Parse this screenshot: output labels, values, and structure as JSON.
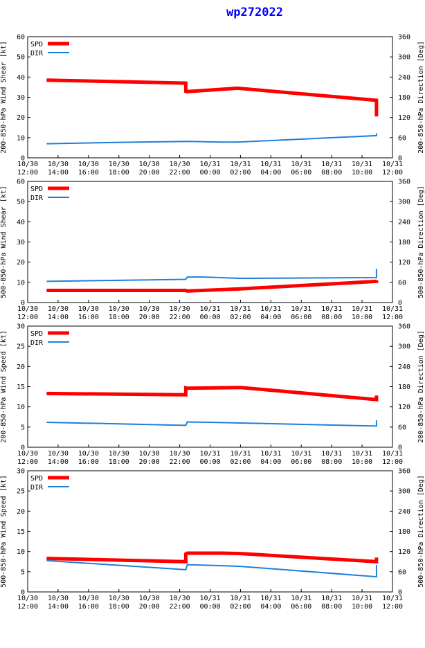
{
  "title": "wp272022",
  "colors": {
    "spd": "#ff0000",
    "dir": "#1e7fd9",
    "title": "#0000ff"
  },
  "chart_data": [
    {
      "type": "line",
      "ylabel_left": "200-850-hPa Wind Shear [kt]",
      "ylabel_right": "200-850-hPa Direction [Deg]",
      "ylim": [
        0,
        60
      ],
      "yticks": [
        0,
        10,
        20,
        30,
        40,
        50,
        60
      ],
      "y2lim": [
        0,
        360
      ],
      "y2ticks": [
        0,
        60,
        120,
        180,
        240,
        300,
        360
      ],
      "xlim": [
        0,
        24
      ],
      "xticks": [
        {
          "x": 0,
          "l1": "10/30",
          "l2": "12:00"
        },
        {
          "x": 2,
          "l1": "10/30",
          "l2": "14:00"
        },
        {
          "x": 4,
          "l1": "10/30",
          "l2": "16:00"
        },
        {
          "x": 6,
          "l1": "10/30",
          "l2": "18:00"
        },
        {
          "x": 8,
          "l1": "10/30",
          "l2": "20:00"
        },
        {
          "x": 10,
          "l1": "10/30",
          "l2": "22:00"
        },
        {
          "x": 12,
          "l1": "10/31",
          "l2": "00:00"
        },
        {
          "x": 14,
          "l1": "10/31",
          "l2": "02:00"
        },
        {
          "x": 16,
          "l1": "10/31",
          "l2": "04:00"
        },
        {
          "x": 18,
          "l1": "10/31",
          "l2": "06:00"
        },
        {
          "x": 20,
          "l1": "10/31",
          "l2": "08:00"
        },
        {
          "x": 22,
          "l1": "10/31",
          "l2": "10:00"
        },
        {
          "x": 24,
          "l1": "10/31",
          "l2": "12:00"
        }
      ],
      "legend": [
        "SPD",
        "DIR"
      ],
      "series": [
        {
          "name": "SPD",
          "axis": "left",
          "width": 5,
          "x": [
            1.25,
            10.4,
            10.4,
            10.5,
            13.8,
            22.95,
            22.95
          ],
          "y": [
            38.5,
            37.0,
            33.0,
            32.8,
            34.5,
            28.5,
            20.5
          ]
        },
        {
          "name": "DIR",
          "axis": "right",
          "width": 2,
          "x": [
            1.25,
            6,
            10.6,
            12.8,
            13.8,
            22.95,
            22.95
          ],
          "y": [
            42,
            46,
            49,
            47,
            47,
            66,
            73
          ]
        }
      ]
    },
    {
      "type": "line",
      "ylabel_left": "500-850-hPa Wind Shear [kt]",
      "ylabel_right": "500-850-hPa Direction [Deg]",
      "ylim": [
        0,
        60
      ],
      "yticks": [
        0,
        10,
        20,
        30,
        40,
        50,
        60
      ],
      "y2lim": [
        0,
        360
      ],
      "y2ticks": [
        0,
        60,
        120,
        180,
        240,
        300,
        360
      ],
      "xlim": [
        0,
        24
      ],
      "xticks": [
        {
          "x": 0,
          "l1": "10/30",
          "l2": "12:00"
        },
        {
          "x": 2,
          "l1": "10/30",
          "l2": "14:00"
        },
        {
          "x": 4,
          "l1": "10/30",
          "l2": "16:00"
        },
        {
          "x": 6,
          "l1": "10/30",
          "l2": "18:00"
        },
        {
          "x": 8,
          "l1": "10/30",
          "l2": "20:00"
        },
        {
          "x": 10,
          "l1": "10/30",
          "l2": "22:00"
        },
        {
          "x": 12,
          "l1": "10/31",
          "l2": "00:00"
        },
        {
          "x": 14,
          "l1": "10/31",
          "l2": "02:00"
        },
        {
          "x": 16,
          "l1": "10/31",
          "l2": "04:00"
        },
        {
          "x": 18,
          "l1": "10/31",
          "l2": "06:00"
        },
        {
          "x": 20,
          "l1": "10/31",
          "l2": "08:00"
        },
        {
          "x": 22,
          "l1": "10/31",
          "l2": "10:00"
        },
        {
          "x": 24,
          "l1": "10/31",
          "l2": "12:00"
        }
      ],
      "legend": [
        "SPD",
        "DIR"
      ],
      "series": [
        {
          "name": "SPD",
          "axis": "left",
          "width": 5,
          "x": [
            1.25,
            10.4,
            10.5,
            14,
            22.95,
            22.95
          ],
          "y": [
            6.0,
            6.0,
            5.7,
            6.8,
            10.5,
            11.0
          ]
        },
        {
          "name": "DIR",
          "axis": "right",
          "width": 2,
          "x": [
            1.25,
            10.4,
            10.5,
            11.5,
            14,
            22.95,
            22.95
          ],
          "y": [
            63,
            69,
            76,
            76,
            72,
            74,
            100
          ]
        }
      ]
    },
    {
      "type": "line",
      "ylabel_left": "200-850-hPa Wind Speed [kt]",
      "ylabel_right": "200-850-hPa Direction [Deg]",
      "ylim": [
        0,
        30
      ],
      "yticks": [
        0,
        5,
        10,
        15,
        20,
        25,
        30
      ],
      "y2lim": [
        0,
        360
      ],
      "y2ticks": [
        0,
        60,
        120,
        180,
        240,
        300,
        360
      ],
      "xlim": [
        0,
        24
      ],
      "xticks": [
        {
          "x": 0,
          "l1": "10/30",
          "l2": "12:00"
        },
        {
          "x": 2,
          "l1": "10/30",
          "l2": "14:00"
        },
        {
          "x": 4,
          "l1": "10/30",
          "l2": "16:00"
        },
        {
          "x": 6,
          "l1": "10/30",
          "l2": "18:00"
        },
        {
          "x": 8,
          "l1": "10/30",
          "l2": "20:00"
        },
        {
          "x": 10,
          "l1": "10/30",
          "l2": "22:00"
        },
        {
          "x": 12,
          "l1": "10/31",
          "l2": "00:00"
        },
        {
          "x": 14,
          "l1": "10/31",
          "l2": "02:00"
        },
        {
          "x": 16,
          "l1": "10/31",
          "l2": "04:00"
        },
        {
          "x": 18,
          "l1": "10/31",
          "l2": "06:00"
        },
        {
          "x": 20,
          "l1": "10/31",
          "l2": "08:00"
        },
        {
          "x": 22,
          "l1": "10/31",
          "l2": "10:00"
        },
        {
          "x": 24,
          "l1": "10/31",
          "l2": "12:00"
        }
      ],
      "legend": [
        "SPD",
        "DIR"
      ],
      "series": [
        {
          "name": "SPD",
          "axis": "left",
          "width": 5,
          "x": [
            1.25,
            10.4,
            10.4,
            10.5,
            14,
            22.95,
            22.95
          ],
          "y": [
            13.3,
            13.0,
            14.7,
            14.6,
            14.8,
            11.8,
            12.8
          ]
        },
        {
          "name": "DIR",
          "axis": "right",
          "width": 2,
          "x": [
            1.25,
            10.4,
            10.5,
            12,
            14,
            22.95,
            22.95
          ],
          "y": [
            74,
            65,
            75,
            74,
            72,
            63,
            80
          ]
        }
      ]
    },
    {
      "type": "line",
      "ylabel_left": "500-850-hPa Wind Speed [kt]",
      "ylabel_right": "500-850-hPa Direction [Deg]",
      "ylim": [
        0,
        30
      ],
      "yticks": [
        0,
        5,
        10,
        15,
        20,
        25,
        30
      ],
      "y2lim": [
        0,
        360
      ],
      "y2ticks": [
        0,
        60,
        120,
        180,
        240,
        300,
        360
      ],
      "xlim": [
        0,
        24
      ],
      "xticks": [
        {
          "x": 0,
          "l1": "10/30",
          "l2": "12:00"
        },
        {
          "x": 2,
          "l1": "10/30",
          "l2": "14:00"
        },
        {
          "x": 4,
          "l1": "10/30",
          "l2": "16:00"
        },
        {
          "x": 6,
          "l1": "10/30",
          "l2": "18:00"
        },
        {
          "x": 8,
          "l1": "10/30",
          "l2": "20:00"
        },
        {
          "x": 10,
          "l1": "10/30",
          "l2": "22:00"
        },
        {
          "x": 12,
          "l1": "10/31",
          "l2": "00:00"
        },
        {
          "x": 14,
          "l1": "10/31",
          "l2": "02:00"
        },
        {
          "x": 16,
          "l1": "10/31",
          "l2": "04:00"
        },
        {
          "x": 18,
          "l1": "10/31",
          "l2": "06:00"
        },
        {
          "x": 20,
          "l1": "10/31",
          "l2": "08:00"
        },
        {
          "x": 22,
          "l1": "10/31",
          "l2": "10:00"
        },
        {
          "x": 24,
          "l1": "10/31",
          "l2": "12:00"
        }
      ],
      "legend": [
        "SPD",
        "DIR"
      ],
      "series": [
        {
          "name": "SPD",
          "axis": "left",
          "width": 5,
          "x": [
            1.25,
            10.4,
            10.4,
            10.5,
            12.8,
            14,
            22.95,
            22.95
          ],
          "y": [
            8.3,
            7.5,
            9.4,
            9.6,
            9.6,
            9.5,
            7.5,
            8.5
          ]
        },
        {
          "name": "DIR",
          "axis": "right",
          "width": 2,
          "x": [
            1.25,
            10.4,
            10.5,
            12.8,
            14,
            22.95,
            22.95
          ],
          "y": [
            93,
            66,
            81,
            78,
            76,
            45,
            80
          ]
        }
      ]
    }
  ]
}
